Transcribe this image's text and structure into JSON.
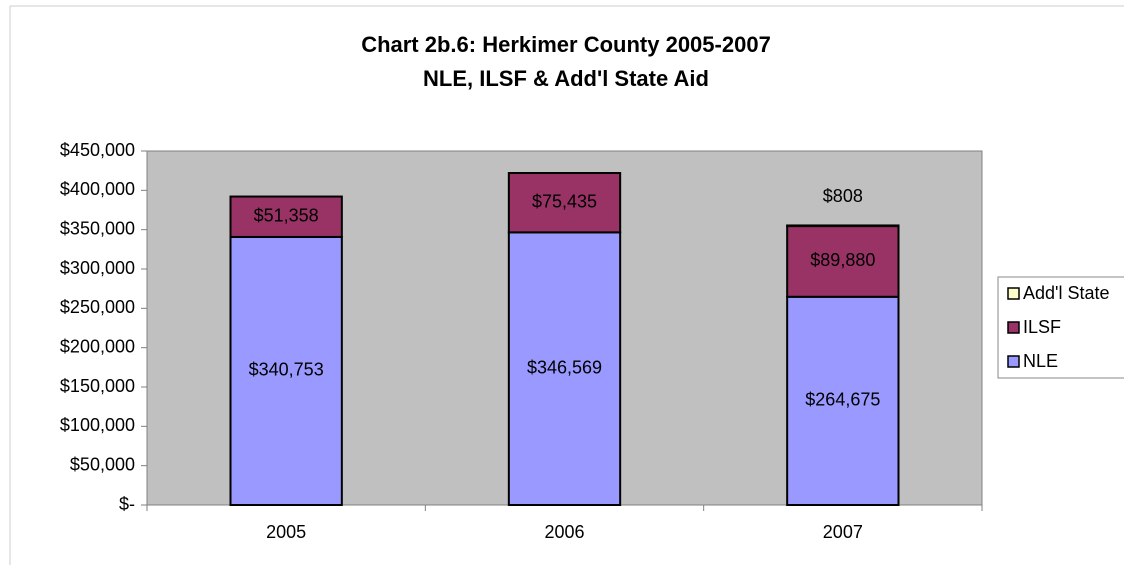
{
  "chart_data": {
    "type": "stacked_bar",
    "title": [
      "Chart 2b.6: Herkimer County 2005-2007",
      "NLE, ILSF & Add'l State Aid"
    ],
    "categories": [
      "2005",
      "2006",
      "2007"
    ],
    "series": [
      {
        "name": "NLE",
        "color": "#9999ff",
        "values": [
          340753,
          346569,
          264675
        ],
        "value_labels": [
          "$340,753",
          "$346,569",
          "$264,675"
        ]
      },
      {
        "name": "ILSF",
        "color": "#993366",
        "values": [
          51358,
          75435,
          89880
        ],
        "value_labels": [
          "$51,358",
          "$75,435",
          "$89,880"
        ]
      },
      {
        "name": "Add'l State",
        "color": "#ffffcc",
        "values": [
          null,
          null,
          808
        ],
        "value_labels": [
          null,
          null,
          "$808"
        ]
      }
    ],
    "ylim": [
      0,
      450000
    ],
    "yticks": [
      {
        "value": 0,
        "label": "$-"
      },
      {
        "value": 50000,
        "label": "$50,000"
      },
      {
        "value": 100000,
        "label": "$100,000"
      },
      {
        "value": 150000,
        "label": "$150,000"
      },
      {
        "value": 200000,
        "label": "$200,000"
      },
      {
        "value": 250000,
        "label": "$250,000"
      },
      {
        "value": 300000,
        "label": "$300,000"
      },
      {
        "value": 350000,
        "label": "$350,000"
      },
      {
        "value": 400000,
        "label": "$400,000"
      },
      {
        "value": 450000,
        "label": "$450,000"
      }
    ],
    "grid": false,
    "legend": "right"
  }
}
